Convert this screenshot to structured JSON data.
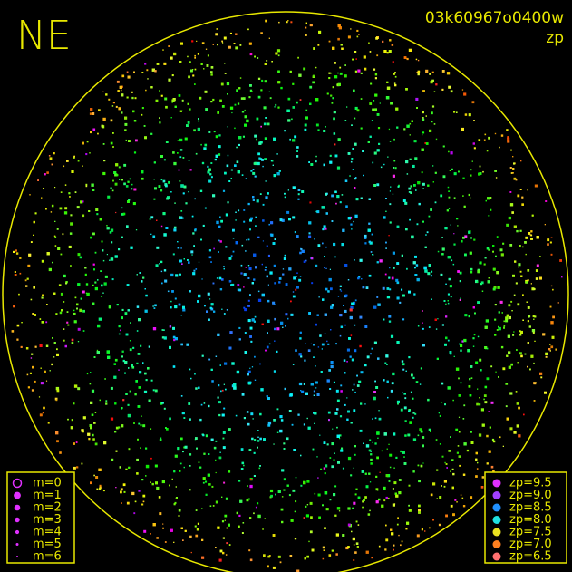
{
  "header": {
    "direction": "NE",
    "frame_id": "03k60967o0400w",
    "mode": "zp"
  },
  "magnitude_legend": [
    "m=0",
    "m=1",
    "m=2",
    "m=3",
    "m=4",
    "m=5",
    "m=6"
  ],
  "zp_legend": [
    {
      "label": "zp=9.5",
      "color": "#e030ff"
    },
    {
      "label": "zp=9.0",
      "color": "#a040ff"
    },
    {
      "label": "zp=8.5",
      "color": "#2090ff"
    },
    {
      "label": "zp=8.0",
      "color": "#20e0e0"
    },
    {
      "label": "zp=7.5",
      "color": "#e8e020"
    },
    {
      "label": "zp=7.0",
      "color": "#ff8020"
    },
    {
      "label": "zp=6.5",
      "color": "#ff7070"
    }
  ]
}
